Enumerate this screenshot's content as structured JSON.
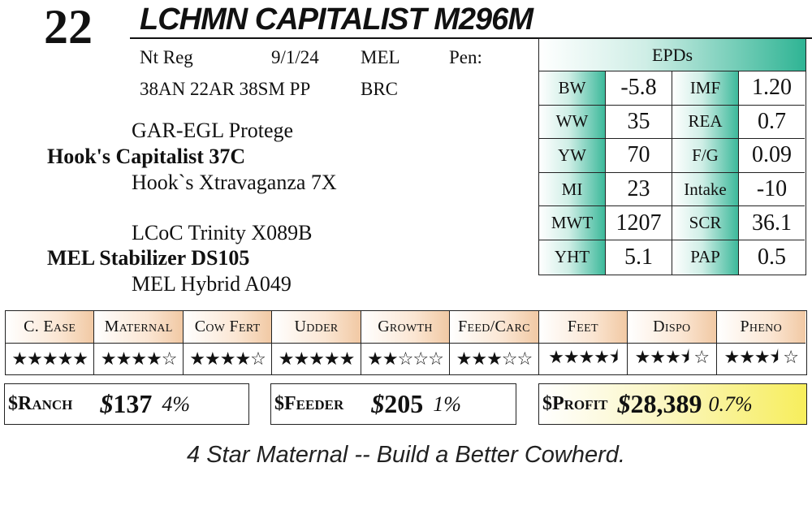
{
  "lot_number": "22",
  "animal_name": "LCHMN CAPITALIST M296M",
  "info_row1": {
    "registration": "Nt Reg",
    "birth_date": "9/1/24",
    "breeder": "MEL",
    "pen": "Pen:"
  },
  "info_row2": {
    "genetics": "38AN 22AR 38SM PP",
    "code": "BRC"
  },
  "pedigree": {
    "sire_sire": "GAR-EGL Protege",
    "sire": "Hook's Capitalist 37C",
    "sire_dam": "Hook`s Xtravaganza 7X",
    "dam_sire": "LCoC Trinity X089B",
    "dam": "MEL Stabilizer DS105",
    "dam_dam": "MEL Hybrid A049"
  },
  "epds": {
    "title": "EPDs",
    "rows": [
      {
        "l1": "BW",
        "v1": "-5.8",
        "l2": "IMF",
        "v2": "1.20"
      },
      {
        "l1": "WW",
        "v1": "35",
        "l2": "REA",
        "v2": "0.7"
      },
      {
        "l1": "YW",
        "v1": "70",
        "l2": "F/G",
        "v2": "0.09"
      },
      {
        "l1": "MI",
        "v1": "23",
        "l2": "Intake",
        "v2": "-10"
      },
      {
        "l1": "MWT",
        "v1": "1207",
        "l2": "SCR",
        "v2": "36.1"
      },
      {
        "l1": "YHT",
        "v1": "5.1",
        "l2": "PAP",
        "v2": "0.5"
      }
    ]
  },
  "ratings": [
    {
      "label": "C. Ease",
      "stars": "★★★★★",
      "value": 5
    },
    {
      "label": "Maternal",
      "stars": "★★★★☆",
      "value": 4
    },
    {
      "label": "Cow Fert",
      "stars": "★★★★☆",
      "value": 4
    },
    {
      "label": "Udder",
      "stars": "★★★★★",
      "value": 5
    },
    {
      "label": "Growth",
      "stars": "★★☆☆☆",
      "value": 2
    },
    {
      "label": "Feed/Carc",
      "stars": "★★★☆☆",
      "value": 3
    },
    {
      "label": "Feet",
      "stars": "★★★★⯨",
      "value": 4.5
    },
    {
      "label": "Dispo",
      "stars": "★★★⯨ ☆",
      "value": 3.5
    },
    {
      "label": "Pheno",
      "stars": "★★★⯨ ☆",
      "value": 3.5
    }
  ],
  "indexes": {
    "ranch": {
      "label": "$Ranch",
      "currency": "$",
      "amount": "137",
      "pct": "4%"
    },
    "feeder": {
      "label": "$Feeder",
      "currency": "$",
      "amount": "205",
      "pct": "1%"
    },
    "profit": {
      "label": "$Profit",
      "currency": "$",
      "amount": "28,389",
      "pct": "0.7%"
    }
  },
  "slogan": "4 Star Maternal -- Build a Better Cowherd.",
  "colors": {
    "epd_accent": "#2fb494",
    "rating_accent": "#f1c9a4",
    "profit_highlight": "#f7ee5c"
  }
}
